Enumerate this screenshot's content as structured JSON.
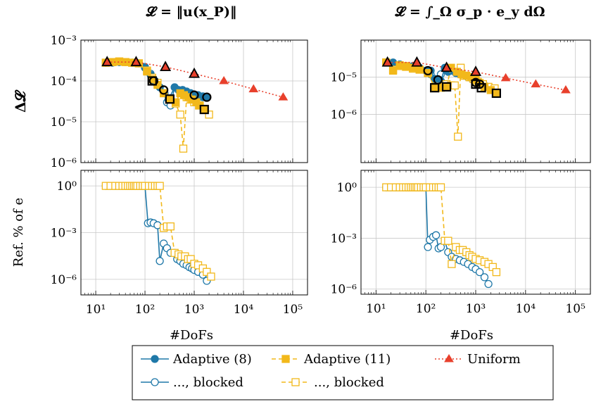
{
  "chart_data": [
    {
      "type": "line",
      "title": "𝓛 = ‖u(x_P)‖",
      "ylabel": "Δ𝓛",
      "xlabel": "",
      "xscale": "log",
      "yscale": "log",
      "xlim": [
        5,
        200000
      ],
      "ylim": [
        1e-06,
        0.001
      ],
      "xticks": [
        10,
        100,
        1000,
        10000,
        100000
      ],
      "xtick_labels": [
        "",
        "",
        "",
        "",
        ""
      ],
      "yticks": [
        1e-06,
        1e-05,
        0.0001,
        0.001
      ],
      "ytick_labels": [
        "10⁻⁶",
        "10⁻⁵",
        "10⁻⁴",
        "10⁻³"
      ],
      "grid": true,
      "series": [
        {
          "key": "ad8_blocked",
          "x": [
            16,
            22,
            30,
            40,
            55,
            75,
            100,
            130,
            160,
            200,
            240,
            280,
            330,
            400,
            480,
            580,
            700,
            850,
            1000,
            1200,
            1500,
            1800
          ],
          "y": [
            0.00028,
            0.00029,
            0.00029,
            0.00029,
            0.00028,
            0.00027,
            0.00022,
            0.00015,
            0.0001,
            7e-05,
            5e-05,
            3e-05,
            2.5e-05,
            7e-05,
            6e-05,
            6e-05,
            5.5e-05,
            5e-05,
            4.5e-05,
            4e-05,
            4e-05,
            4e-05
          ]
        },
        {
          "key": "ad8",
          "x": [
            16,
            22,
            30,
            40,
            55,
            75,
            100,
            130,
            160,
            200,
            250,
            300,
            400,
            480,
            580,
            700,
            850,
            1000,
            1200,
            1500,
            1800
          ],
          "y": [
            0.00028,
            0.00028,
            0.00029,
            0.00029,
            0.00028,
            0.00027,
            0.00021,
            0.00014,
            0.0001,
            7e-05,
            5e-05,
            3.5e-05,
            7e-05,
            6e-05,
            6e-05,
            5.5e-05,
            5e-05,
            4.5e-05,
            4.5e-05,
            4.2e-05,
            4e-05
          ]
        },
        {
          "key": "ad11_blocked",
          "x": [
            16,
            22,
            30,
            40,
            55,
            75,
            110,
            140,
            180,
            240,
            320,
            420,
            520,
            600,
            700,
            850,
            1000,
            1250,
            1600,
            2000
          ],
          "y": [
            0.00028,
            0.00029,
            0.0003,
            0.00029,
            0.00028,
            0.00027,
            0.00018,
            0.00012,
            9e-05,
            5e-05,
            3.5e-05,
            2.8e-05,
            1.5e-05,
            2.2e-06,
            4e-05,
            3.5e-05,
            3e-05,
            2.5e-05,
            2e-05,
            1.5e-05
          ]
        },
        {
          "key": "ad11",
          "x": [
            16,
            22,
            30,
            40,
            55,
            75,
            110,
            140,
            180,
            240,
            320,
            420,
            520,
            620,
            750,
            900,
            1100,
            1300,
            1600
          ],
          "y": [
            0.00028,
            0.00029,
            0.0003,
            0.00029,
            0.00028,
            0.00027,
            0.00017,
            0.00011,
            8e-05,
            5e-05,
            3.5e-05,
            3e-05,
            5e-05,
            4.5e-05,
            4e-05,
            3.5e-05,
            3e-05,
            2.5e-05,
            2e-05
          ]
        },
        {
          "key": "uniform",
          "x": [
            17,
            66,
            260,
            1000,
            4000,
            16000,
            64000
          ],
          "y": [
            0.00029,
            0.00029,
            0.00022,
            0.00015,
            0.0001,
            6.3e-05,
            4e-05
          ]
        }
      ],
      "highlights": [
        {
          "marker": "triangle",
          "x": 17,
          "y": 0.00029
        },
        {
          "marker": "triangle",
          "x": 66,
          "y": 0.00029
        },
        {
          "marker": "triangle",
          "x": 260,
          "y": 0.00022
        },
        {
          "marker": "triangle",
          "x": 1000,
          "y": 0.00015
        },
        {
          "marker": "square",
          "x": 140,
          "y": 0.0001
        },
        {
          "marker": "square",
          "x": 320,
          "y": 3.6e-05
        },
        {
          "marker": "square",
          "x": 1600,
          "y": 2e-05
        },
        {
          "marker": "circle",
          "x": 150,
          "y": 0.0001
        },
        {
          "marker": "circle",
          "x": 240,
          "y": 6e-05
        },
        {
          "marker": "circle",
          "x": 1000,
          "y": 4.5e-05
        },
        {
          "marker": "circle",
          "x": 1800,
          "y": 4e-05
        }
      ]
    },
    {
      "type": "line",
      "title": "𝓛 = ∫_Ω σ_p · e_y dΩ",
      "ylabel": "",
      "xlabel": "",
      "xscale": "log",
      "yscale": "log",
      "xlim": [
        5,
        200000
      ],
      "ylim": [
        5e-08,
        0.0001
      ],
      "xticks": [
        10,
        100,
        1000,
        10000,
        100000
      ],
      "xtick_labels": [
        "",
        "",
        "",
        "",
        ""
      ],
      "yticks": [
        1e-06,
        1e-05
      ],
      "ytick_labels": [
        "10⁻⁶",
        "10⁻⁵"
      ],
      "grid": true,
      "series": [
        {
          "key": "ad8_blocked",
          "x": [
            16,
            22,
            30,
            40,
            55,
            75,
            100,
            125,
            150,
            175,
            200,
            240,
            280,
            330,
            400,
            480,
            580,
            700,
            850,
            1000,
            1200,
            1500
          ],
          "y": [
            2.5e-05,
            2.5e-05,
            2.2e-05,
            2e-05,
            2e-05,
            1.8e-05,
            1.5e-05,
            1.2e-05,
            9e-06,
            8e-06,
            1.2e-05,
            1.7e-05,
            1.4e-05,
            1.6e-05,
            1.3e-05,
            1.2e-05,
            1.1e-05,
            1e-05,
            9e-06,
            8e-06,
            7e-06,
            6e-06
          ]
        },
        {
          "key": "ad8",
          "x": [
            16,
            22,
            30,
            40,
            55,
            75,
            100,
            125,
            150,
            200,
            240,
            280,
            330,
            400,
            480,
            580,
            700,
            850,
            1000,
            1200,
            1500
          ],
          "y": [
            2.5e-05,
            2.4e-05,
            2.2e-05,
            2e-05,
            1.9e-05,
            1.7e-05,
            1.5e-05,
            1.5e-05,
            9e-06,
            8e-06,
            1.8e-05,
            1.4e-05,
            1.5e-05,
            1.3e-05,
            1.2e-05,
            1.1e-05,
            1e-05,
            9e-06,
            8e-06,
            7e-06,
            6e-06
          ]
        },
        {
          "key": "ad11_blocked",
          "x": [
            16,
            22,
            30,
            40,
            55,
            75,
            110,
            150,
            200,
            260,
            320,
            380,
            440,
            500,
            600,
            750,
            900,
            1100,
            1400,
            1800,
            2400
          ],
          "y": [
            2.5e-05,
            1.6e-05,
            2e-05,
            1.9e-05,
            1.7e-05,
            1.6e-05,
            1.3e-05,
            5.5e-06,
            5.5e-06,
            6.5e-06,
            6e-06,
            6e-06,
            2.5e-07,
            1.8e-05,
            1.1e-05,
            1e-05,
            9e-06,
            7.5e-06,
            6.5e-06,
            5.5e-06,
            5e-06
          ]
        },
        {
          "key": "ad11",
          "x": [
            16,
            22,
            30,
            40,
            55,
            75,
            110,
            150,
            200,
            260,
            320,
            420,
            520,
            650,
            800,
            1000,
            1200,
            1500,
            2000,
            2600
          ],
          "y": [
            2.5e-05,
            1.5e-05,
            2.1e-05,
            2e-05,
            1.8e-05,
            1.6e-05,
            1.3e-05,
            5.2e-06,
            5.2e-06,
            5.5e-06,
            1.8e-05,
            1.4e-05,
            1.2e-05,
            1.1e-05,
            1e-05,
            8.5e-06,
            7e-06,
            5.5e-06,
            4.5e-06,
            3.7e-06
          ]
        },
        {
          "key": "uniform",
          "x": [
            17,
            66,
            260,
            1000,
            4000,
            16000,
            64000
          ],
          "y": [
            2.5e-05,
            2.5e-05,
            1.8e-05,
            1.4e-05,
            9.5e-06,
            6.5e-06,
            4.5e-06
          ]
        }
      ],
      "highlights": [
        {
          "marker": "triangle",
          "x": 17,
          "y": 2.5e-05
        },
        {
          "marker": "triangle",
          "x": 66,
          "y": 2.5e-05
        },
        {
          "marker": "triangle",
          "x": 260,
          "y": 1.8e-05
        },
        {
          "marker": "triangle",
          "x": 1000,
          "y": 1.4e-05
        },
        {
          "marker": "square",
          "x": 150,
          "y": 5.2e-06
        },
        {
          "marker": "square",
          "x": 260,
          "y": 5.5e-06
        },
        {
          "marker": "square",
          "x": 1000,
          "y": 6.5e-06
        },
        {
          "marker": "square",
          "x": 1300,
          "y": 5.2e-06
        },
        {
          "marker": "square",
          "x": 2600,
          "y": 3.7e-06
        },
        {
          "marker": "circle",
          "x": 110,
          "y": 1.5e-05
        },
        {
          "marker": "circle",
          "x": 175,
          "y": 8.5e-06
        },
        {
          "marker": "circle",
          "x": 1000,
          "y": 7.2e-06
        },
        {
          "marker": "circle",
          "x": 1200,
          "y": 6.5e-06
        }
      ]
    },
    {
      "type": "line",
      "title": "",
      "ylabel": "Ref. % of e",
      "xlabel": "#DoFs",
      "xscale": "log",
      "yscale": "log",
      "xlim": [
        5,
        200000
      ],
      "ylim": [
        1e-07,
        10
      ],
      "xticks": [
        10,
        100,
        1000,
        10000,
        100000
      ],
      "xtick_labels": [
        "10¹",
        "10²",
        "10³",
        "10⁴",
        "10⁵"
      ],
      "yticks": [
        1e-06,
        0.001,
        1
      ],
      "ytick_labels": [
        "10⁻⁶",
        "10⁻³",
        "10⁰"
      ],
      "grid": true,
      "series": [
        {
          "key": "ad8_blocked",
          "x": [
            16,
            20,
            25,
            30,
            35,
            40,
            45,
            50,
            55,
            60,
            65,
            70,
            75,
            80,
            85,
            90,
            95,
            100,
            115,
            130,
            150,
            180,
            200,
            240,
            280,
            330,
            400,
            450,
            520,
            600,
            700,
            800,
            900,
            1000,
            1200,
            1500,
            1800
          ],
          "y": [
            1,
            1,
            1,
            1,
            1,
            1,
            1,
            1,
            1,
            1,
            1,
            1,
            1,
            1,
            1,
            1,
            1,
            1,
            0.004,
            0.0045,
            0.004,
            0.003,
            1.5e-05,
            0.0002,
            0.0001,
            5e-05,
            5e-05,
            2e-05,
            1.5e-05,
            1e-05,
            8e-06,
            6e-06,
            5e-06,
            4e-06,
            3e-06,
            2e-06,
            8e-07
          ]
        },
        {
          "key": "ad11_blocked",
          "x": [
            16,
            20,
            25,
            30,
            35,
            40,
            45,
            50,
            55,
            60,
            65,
            70,
            80,
            90,
            100,
            120,
            140,
            160,
            180,
            200,
            240,
            280,
            330,
            400,
            480,
            550,
            650,
            750,
            850,
            1000,
            1200,
            1500,
            1800,
            2200
          ],
          "y": [
            1,
            1,
            1,
            1,
            1,
            1,
            1,
            1,
            1,
            1,
            1,
            1,
            1,
            1,
            1,
            1,
            1,
            1,
            1,
            1,
            0.002,
            0.0025,
            0.0025,
            5e-05,
            4e-05,
            3e-05,
            3e-05,
            2e-05,
            2e-05,
            1e-05,
            8e-06,
            5e-06,
            3e-06,
            1.5e-06
          ]
        }
      ],
      "highlights": []
    },
    {
      "type": "line",
      "title": "",
      "ylabel": "",
      "xlabel": "#DoFs",
      "xscale": "log",
      "yscale": "log",
      "xlim": [
        5,
        200000
      ],
      "ylim": [
        5e-07,
        10
      ],
      "xticks": [
        10,
        100,
        1000,
        10000,
        100000
      ],
      "xtick_labels": [
        "10¹",
        "10²",
        "10³",
        "10⁴",
        "10⁵"
      ],
      "yticks": [
        1e-06,
        0.001,
        1
      ],
      "ytick_labels": [
        "10⁻⁶",
        "10⁻³",
        "10⁰"
      ],
      "grid": true,
      "series": [
        {
          "key": "ad8_blocked",
          "x": [
            16,
            20,
            25,
            30,
            35,
            40,
            45,
            50,
            55,
            60,
            65,
            70,
            75,
            80,
            85,
            90,
            95,
            100,
            110,
            120,
            140,
            160,
            180,
            200,
            240,
            280,
            330,
            400,
            480,
            580,
            700,
            850,
            1000,
            1200,
            1500,
            1800
          ],
          "y": [
            1,
            1,
            1,
            1,
            1,
            1,
            1,
            1,
            1,
            1,
            1,
            1,
            1,
            1,
            1,
            1,
            1,
            1,
            0.0003,
            0.0008,
            0.0012,
            0.0015,
            0.00025,
            0.0003,
            0.0007,
            0.00015,
            8e-05,
            6e-05,
            5e-05,
            4e-05,
            3e-05,
            2e-05,
            1.5e-05,
            1e-05,
            5e-06,
            2e-06
          ]
        },
        {
          "key": "ad11_blocked",
          "x": [
            16,
            20,
            25,
            30,
            35,
            40,
            45,
            50,
            55,
            60,
            65,
            70,
            80,
            90,
            100,
            120,
            140,
            160,
            180,
            200,
            240,
            280,
            330,
            400,
            480,
            550,
            650,
            750,
            850,
            1000,
            1200,
            1500,
            1800,
            2200,
            2600
          ],
          "y": [
            1,
            1,
            1,
            1,
            1,
            1,
            1,
            1,
            1,
            1,
            1,
            1,
            1,
            1,
            1,
            1,
            1,
            1,
            1,
            1,
            0.0007,
            0.0007,
            3e-05,
            0.0003,
            0.0002,
            0.0002,
            0.00015,
            0.0001,
            8e-05,
            6e-05,
            5e-05,
            4e-05,
            3e-05,
            2e-05,
            1e-05
          ]
        }
      ],
      "highlights": []
    }
  ],
  "legend": {
    "entries": [
      {
        "key": "ad8",
        "label": "Adaptive (8)"
      },
      {
        "key": "ad11",
        "label": "Adaptive (11)"
      },
      {
        "key": "uniform",
        "label": "Uniform"
      },
      {
        "key": "ad8_blocked",
        "label": "..., blocked"
      },
      {
        "key": "ad11_blocked",
        "label": "..., blocked"
      }
    ],
    "placement": "bottom-center"
  },
  "styles": {
    "ad8": {
      "color": "#1f78a8",
      "dash": "none",
      "marker": "circle",
      "fill": true
    },
    "ad8_blocked": {
      "color": "#1f78a8",
      "dash": "none",
      "marker": "circle",
      "fill": false
    },
    "ad11": {
      "color": "#f2b81a",
      "dash": "6,4",
      "marker": "square",
      "fill": true
    },
    "ad11_blocked": {
      "color": "#f2b81a",
      "dash": "6,4",
      "marker": "square",
      "fill": false
    },
    "uniform": {
      "color": "#e8402c",
      "dash": "2,3",
      "marker": "triangle",
      "fill": true
    }
  }
}
